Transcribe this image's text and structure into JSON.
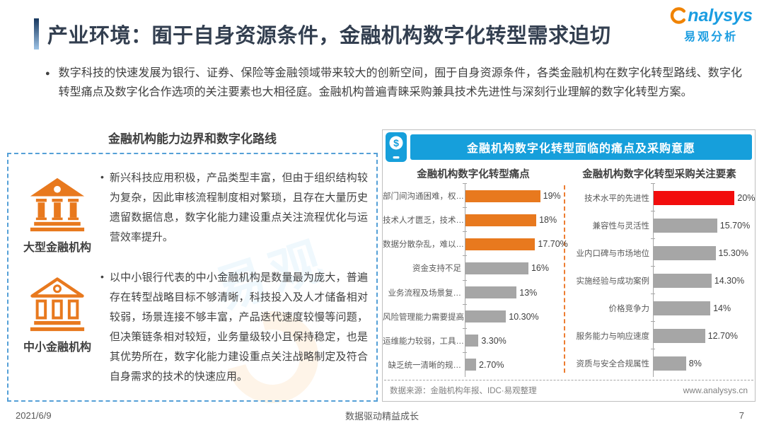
{
  "page": {
    "title": "产业环境：囿于自身资源条件，金融机构数字化转型需求迫切",
    "intro_bullet": "●",
    "intro": "数字科技的快速发展为银行、证券、保险等金融领域带来较大的创新空间，囿于自身资源条件，各类金融机构在数字化转型路线、数字化转型痛点及数字化合作选项的关注要素也大相径庭。金融机构普遍青睐采购兼具技术先进性与深刻行业理解的数字化转型方案。"
  },
  "logo": {
    "brand": "nalysys",
    "brand_cn": "易观分析"
  },
  "left_panel": {
    "title": "金融机构能力边界和数字化路线",
    "items": [
      {
        "label": "大型金融机构",
        "icon": "bank-filled-icon",
        "bullet": "•",
        "text": "新兴科技应用积极，产品类型丰富，但由于组织结构较为复杂，因此审核流程制度相对繁琐，且存在大量历史遗留数据信息，数字化能力建设重点关注流程优化与运营效率提升。"
      },
      {
        "label": "中小金融机构",
        "icon": "bank-outline-icon",
        "bullet": "•",
        "text": "以中小银行代表的中小金融机构是数量最为庞大，普遍存在转型战略目标不够清晰，科技投入及人才储备相对较弱，场景连接不够丰富，产品迭代速度较慢等问题，但决策链条相对较短，业务量级较小且保持稳定，也是其优势所在，数字化能力建设重点关注战略制定及符合自身需求的技术的快速应用。"
      }
    ]
  },
  "right_panel": {
    "header": "金融机构数字化转型面临的痛点及采购意愿",
    "source": "数据来源：金融机构年报、IDC·易观整理",
    "website": "www.analysys.cn"
  },
  "chart_data": [
    {
      "type": "bar",
      "orientation": "horizontal",
      "title": "金融机构数字化转型痛点",
      "categories": [
        "部门间沟通困难，权…",
        "技术人才匮乏，技术…",
        "数据分散杂乱，难以…",
        "资金支持不足",
        "业务流程及场景复…",
        "风险管理能力需要提高",
        "运维能力较弱，工具…",
        "缺乏统一清晰的规…"
      ],
      "values": [
        19,
        18,
        17.7,
        16,
        13,
        10.3,
        3.3,
        2.7
      ],
      "value_labels": [
        "19%",
        "18%",
        "17.70%",
        "16%",
        "13%",
        "10.30%",
        "3.30%",
        "2.70%"
      ],
      "colors": [
        "#E8791E",
        "#E8791E",
        "#E8791E",
        "#A6A6A6",
        "#A6A6A6",
        "#A6A6A6",
        "#A6A6A6",
        "#A6A6A6"
      ],
      "xlabel": "",
      "ylabel": "",
      "xlim": [
        0,
        20
      ],
      "grid": false,
      "legend": "none"
    },
    {
      "type": "bar",
      "orientation": "horizontal",
      "title": "金融机构数字化转型采购关注要素",
      "categories": [
        "技术水平的先进性",
        "兼容性与灵活性",
        "业内口碑与市场地位",
        "实施经验与成功案例",
        "价格竞争力",
        "服务能力与响应速度",
        "资质与安全合规属性"
      ],
      "values": [
        20,
        15.7,
        15.3,
        14.3,
        14,
        12.7,
        8
      ],
      "value_labels": [
        "20%",
        "15.70%",
        "15.30%",
        "14.30%",
        "14%",
        "12.70%",
        "8%"
      ],
      "colors": [
        "#F20D0D",
        "#A6A6A6",
        "#A6A6A6",
        "#A6A6A6",
        "#A6A6A6",
        "#A6A6A6",
        "#A6A6A6"
      ],
      "xlabel": "",
      "ylabel": "",
      "xlim": [
        0,
        20
      ],
      "grid": false,
      "legend": "none"
    }
  ],
  "footer": {
    "date": "2021/6/9",
    "slogan": "数据驱动精益成长",
    "page_number": "7"
  },
  "colors": {
    "accent_blue": "#169FDB",
    "brand_blue": "#1B9DE1",
    "brand_orange": "#F08300",
    "bar_orange": "#E8791E",
    "bar_gray": "#A6A6A6",
    "bar_red": "#F20D0D",
    "title_navy": "#333F50",
    "panel_dash_blue": "#55A0D7"
  }
}
